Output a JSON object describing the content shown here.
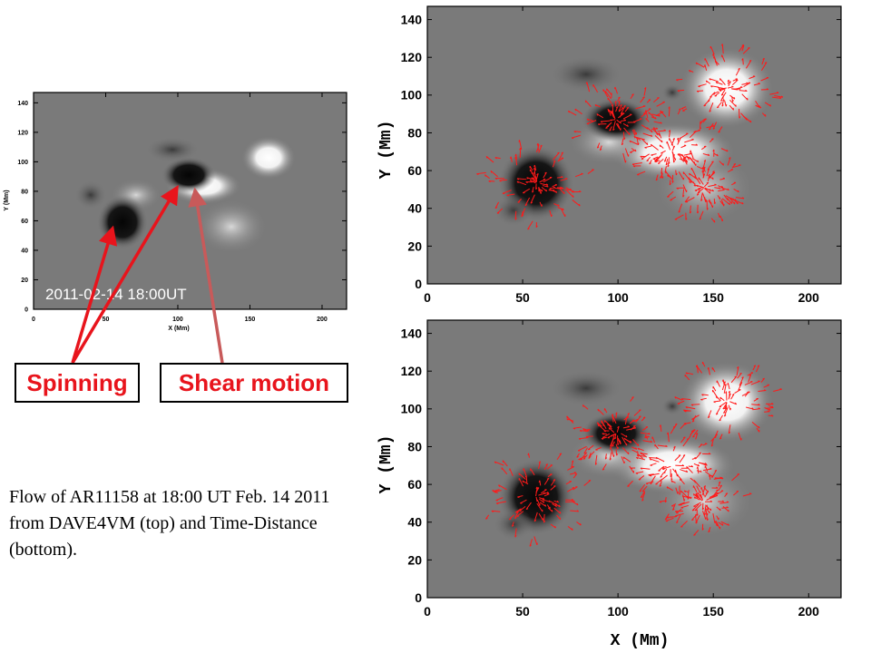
{
  "inset": {
    "timestamp": "2011-02-14 18:00UT",
    "xlabel": "X (Mm)",
    "ylabel": "Y (Mm)",
    "x_ticks": [
      "0",
      "50",
      "100",
      "150",
      "200"
    ],
    "y_ticks": [
      "0",
      "20",
      "40",
      "60",
      "80",
      "100",
      "120",
      "140"
    ]
  },
  "callouts": {
    "spinning": "Spinning",
    "shear": "Shear motion"
  },
  "caption": "Flow of AR11158 at 18:00 UT Feb. 14 2011 from DAVE4VM (top) and Time-Distance (bottom).",
  "panels": {
    "top": {
      "ylabel": "Y (Mm)",
      "x_ticks": [
        "0",
        "50",
        "100",
        "150",
        "200"
      ],
      "y_ticks": [
        "0",
        "20",
        "40",
        "60",
        "80",
        "100",
        "120",
        "140"
      ]
    },
    "bottom": {
      "ylabel": "Y (Mm)",
      "xlabel": "X (Mm)",
      "x_ticks": [
        "0",
        "50",
        "100",
        "150",
        "200"
      ],
      "y_ticks": [
        "0",
        "20",
        "40",
        "60",
        "80",
        "100",
        "120",
        "140"
      ]
    }
  },
  "colors": {
    "arrow": "#e8141c",
    "shear_arrow": "#c85a5a",
    "vector": "#ff1a1a",
    "background_field": "#7a7a7a"
  }
}
